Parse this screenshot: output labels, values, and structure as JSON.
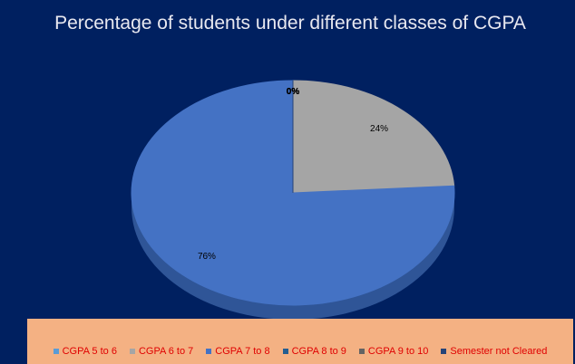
{
  "chart_data": {
    "type": "pie",
    "title": "Percentage of students under different classes of CGPA",
    "categories": [
      "CGPA 5 to 6",
      "CGPA 6 to 7",
      "CGPA 7 to 8",
      "CGPA 8 to 9",
      "CGPA 9 to 10",
      "Semester not Cleared"
    ],
    "values": [
      0,
      24,
      76,
      0,
      0,
      0
    ],
    "value_labels": [
      "0%",
      "24%",
      "76%",
      "0%",
      "0%",
      "0%"
    ],
    "colors": [
      "#5b9bd5",
      "#a5a5a5",
      "#4472c4",
      "#255e91",
      "#636363",
      "#264478"
    ],
    "legend": "bottom"
  }
}
